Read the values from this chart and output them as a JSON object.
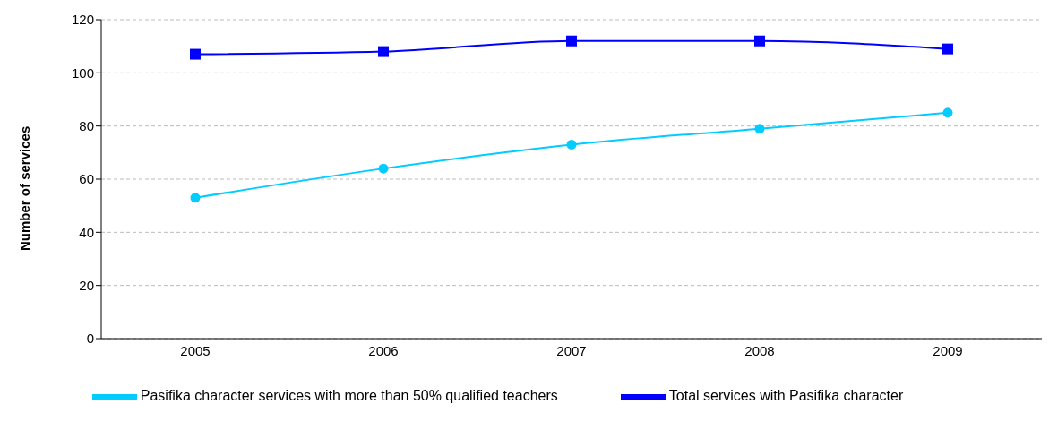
{
  "chart_data": {
    "type": "line",
    "ylabel": "Number of services",
    "categories": [
      "2005",
      "2006",
      "2007",
      "2008",
      "2009"
    ],
    "series": [
      {
        "name": "Pasifika character services with more than 50% qualified teachers",
        "color": "#00ccff",
        "marker": "circle",
        "values": [
          53,
          64,
          73,
          79,
          85
        ]
      },
      {
        "name": "Total services with Pasifika character",
        "color": "#0000ff",
        "marker": "square",
        "values": [
          107,
          108,
          112,
          112,
          109
        ]
      }
    ],
    "ylim": [
      0,
      120
    ],
    "yticks": [
      0,
      20,
      40,
      60,
      80,
      100,
      120
    ],
    "grid": "y",
    "legend": "bottom"
  }
}
